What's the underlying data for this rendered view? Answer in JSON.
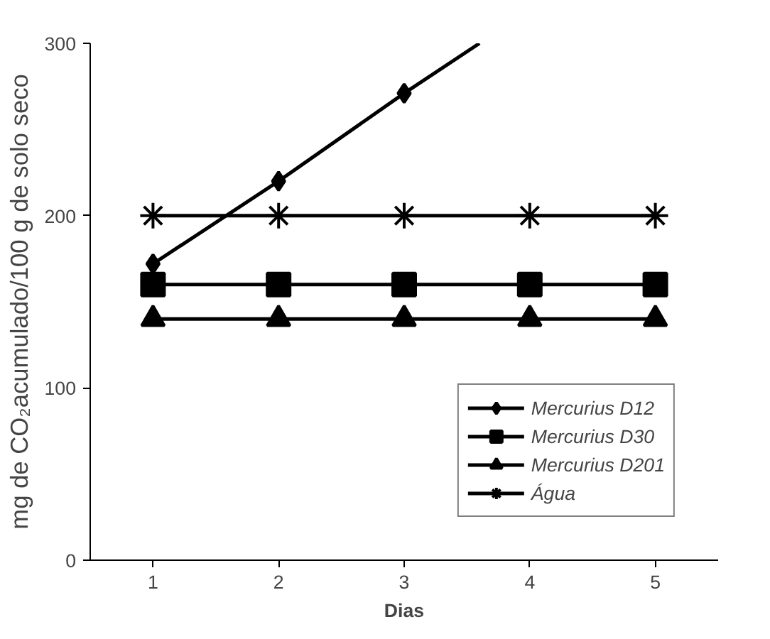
{
  "chart_data": {
    "type": "line",
    "xlabel": "Dias",
    "ylabel": "mg de CO₂acumulado/100 g de solo seco",
    "xlim": [
      0.5,
      5.5
    ],
    "xticks": [
      1,
      2,
      3,
      4,
      5
    ],
    "ylim": [
      0,
      300
    ],
    "yticks": [
      0,
      100,
      200,
      300
    ],
    "grid": false,
    "legend": "bottom right",
    "line_style": "solid",
    "series": [
      {
        "name": "Mercurius D12",
        "color": "#000000",
        "marker": "diamond",
        "x": [
          1,
          2,
          3,
          3.6
        ],
        "values": [
          172,
          220,
          271,
          300
        ]
      },
      {
        "name": "Mercurius D30",
        "color": "#000000",
        "marker": "square",
        "x": [
          1,
          2,
          3,
          4,
          5
        ],
        "values": [
          160,
          160,
          160,
          160,
          160
        ]
      },
      {
        "name": "Mercurius D201",
        "color": "#000000",
        "marker": "triangle",
        "x": [
          1,
          2,
          3,
          4,
          5
        ],
        "values": [
          140,
          140,
          140,
          140,
          140
        ]
      },
      {
        "name": "Água",
        "color": "#000000",
        "marker": "cross",
        "x": [
          1,
          2,
          3,
          4,
          5
        ],
        "values": [
          200,
          200,
          200,
          200,
          200
        ]
      }
    ]
  }
}
